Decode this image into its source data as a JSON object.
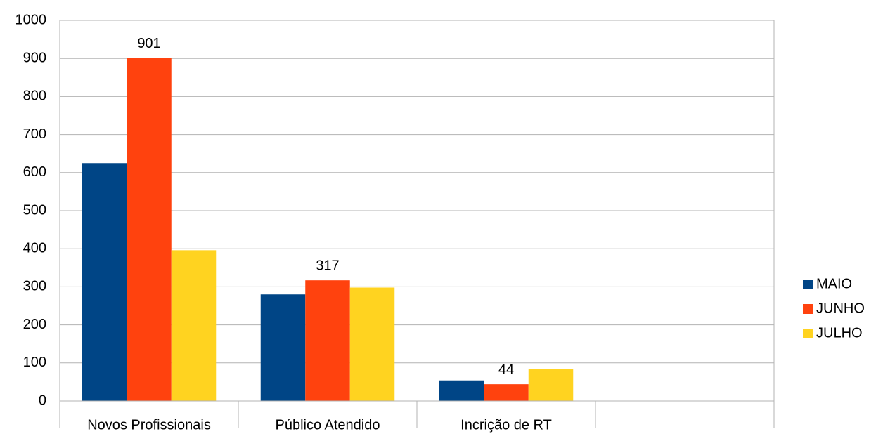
{
  "chart_data": {
    "type": "bar",
    "categories": [
      "Novos Profissionais",
      "Público Atendido",
      "Incrição de RT",
      null
    ],
    "series": [
      {
        "name": "MAIO",
        "color": "#004586",
        "values": [
          625,
          280,
          54,
          null
        ]
      },
      {
        "name": "JUNHO",
        "color": "#ff420e",
        "values": [
          901,
          317,
          44,
          null
        ],
        "show_labels": true
      },
      {
        "name": "JULHO",
        "color": "#ffd320",
        "values": [
          396,
          298,
          83,
          null
        ]
      }
    ],
    "ylim": [
      0,
      1000
    ],
    "yticks": [
      0,
      100,
      200,
      300,
      400,
      500,
      600,
      700,
      800,
      900,
      1000
    ],
    "grid": true,
    "legend": "right"
  }
}
